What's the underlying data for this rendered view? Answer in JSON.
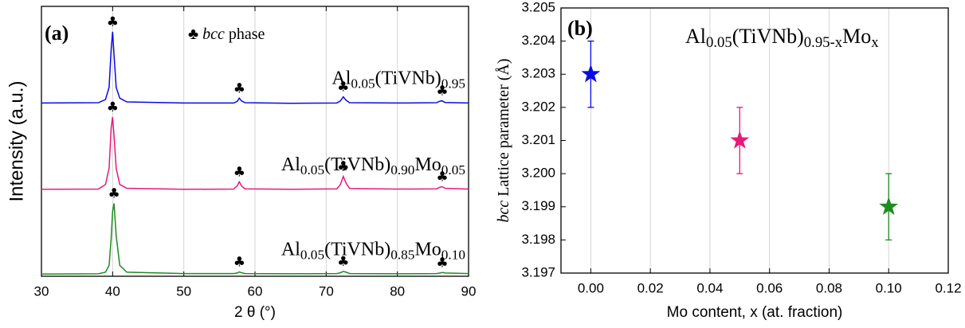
{
  "chart_data": [
    {
      "type": "line",
      "panel_label": "(a)",
      "annotation": [
        {
          "text": "♣ "
        },
        {
          "text": "bcc",
          "style": "italic"
        },
        {
          "text": " phase"
        }
      ],
      "x_label": "2 θ (°)",
      "y_label": "Intensity (a.u.)",
      "xlim": [
        30,
        90
      ],
      "xticks": [
        30,
        40,
        50,
        60,
        70,
        80,
        90
      ],
      "ylim": [
        0,
        100
      ],
      "grid": "x",
      "peak_marker": "♣",
      "peak_positions": [
        40,
        57.8,
        72.4,
        86.2
      ],
      "x": [
        30,
        38,
        39,
        39.5,
        39.8,
        40,
        40.2,
        40.5,
        41,
        42,
        50,
        57,
        57.5,
        57.8,
        58.1,
        58.6,
        65,
        71.5,
        72,
        72.4,
        72.8,
        73.3,
        80,
        85.5,
        86,
        86.3,
        86.7,
        90
      ],
      "series": [
        {
          "name": [
            {
              "text": "Al"
            },
            {
              "text": "0.05",
              "style": "sub"
            },
            {
              "text": "(TiVNb)"
            },
            {
              "text": "0.95",
              "style": "sub"
            }
          ],
          "color": "#0a0ae6",
          "values": [
            64.2,
            64.3,
            65.5,
            70,
            84,
            90.6,
            82,
            70,
            66,
            64.6,
            64.2,
            64.2,
            64.8,
            66,
            65,
            64.3,
            64.1,
            64.2,
            65,
            66.5,
            65.2,
            64.3,
            64.2,
            64.3,
            64.9,
            65,
            64.4,
            64.2
          ]
        },
        {
          "name": [
            {
              "text": "Al"
            },
            {
              "text": "0.05",
              "style": "sub"
            },
            {
              "text": "(TiVNb)"
            },
            {
              "text": "0.90",
              "style": "sub"
            },
            {
              "text": "Mo"
            },
            {
              "text": "0.05",
              "style": "sub"
            }
          ],
          "color": "#e8197a",
          "values": [
            32.2,
            32.3,
            34,
            40,
            55,
            59,
            52,
            40,
            34,
            32.6,
            32.2,
            32.3,
            33.5,
            35,
            33.5,
            32.4,
            32.2,
            32.4,
            34,
            37,
            34.5,
            32.5,
            32.3,
            32.4,
            33,
            33.2,
            32.6,
            32.3
          ]
        },
        {
          "name": [
            {
              "text": "Al"
            },
            {
              "text": "0.05",
              "style": "sub"
            },
            {
              "text": "(TiVNb)"
            },
            {
              "text": "0.85",
              "style": "sub"
            },
            {
              "text": "Mo"
            },
            {
              "text": "0.10",
              "style": "sub"
            }
          ],
          "color": "#1e8c1e",
          "values": [
            0.8,
            0.9,
            1.5,
            4,
            14,
            24,
            27,
            15,
            4,
            1.5,
            1,
            1,
            1.2,
            1.6,
            1.3,
            1,
            0.9,
            1,
            1.3,
            1.8,
            1.5,
            1,
            0.9,
            1,
            1.2,
            1.4,
            1.2,
            1
          ]
        }
      ]
    },
    {
      "type": "scatter",
      "panel_label": "(b)",
      "annotation": [
        {
          "text": "Al"
        },
        {
          "text": "0.05",
          "style": "sub"
        },
        {
          "text": "(TiVNb)"
        },
        {
          "text": "0.95-x",
          "style": "sub"
        },
        {
          "text": "Mo"
        },
        {
          "text": "x",
          "style": "sub"
        }
      ],
      "x_label": "Mo content, x (at. fraction)",
      "y_label": [
        {
          "text": "bcc",
          "style": "italic"
        },
        {
          "text": " Lattice parameter  (Å)"
        }
      ],
      "xlim": [
        -0.01,
        0.12
      ],
      "xticks": [
        {
          "value": 0,
          "label": "0.00"
        },
        0.02,
        0.04,
        0.06,
        0.08,
        {
          "value": 0.1,
          "label": "0.10"
        },
        0.12
      ],
      "ylim": [
        3.197,
        3.205
      ],
      "yticks": [
        3.197,
        3.198,
        3.199,
        {
          "value": 3.2,
          "label": "3.200"
        },
        3.201,
        3.202,
        3.203,
        3.204,
        3.205
      ],
      "grid": "x",
      "x": [
        0,
        0.05,
        0.1
      ],
      "values": [
        3.203,
        3.201,
        3.199
      ],
      "errors": [
        0.001,
        0.001,
        0.001
      ],
      "colors": [
        "#0a0ae6",
        "#e8197a",
        "#1e8c1e"
      ]
    }
  ]
}
